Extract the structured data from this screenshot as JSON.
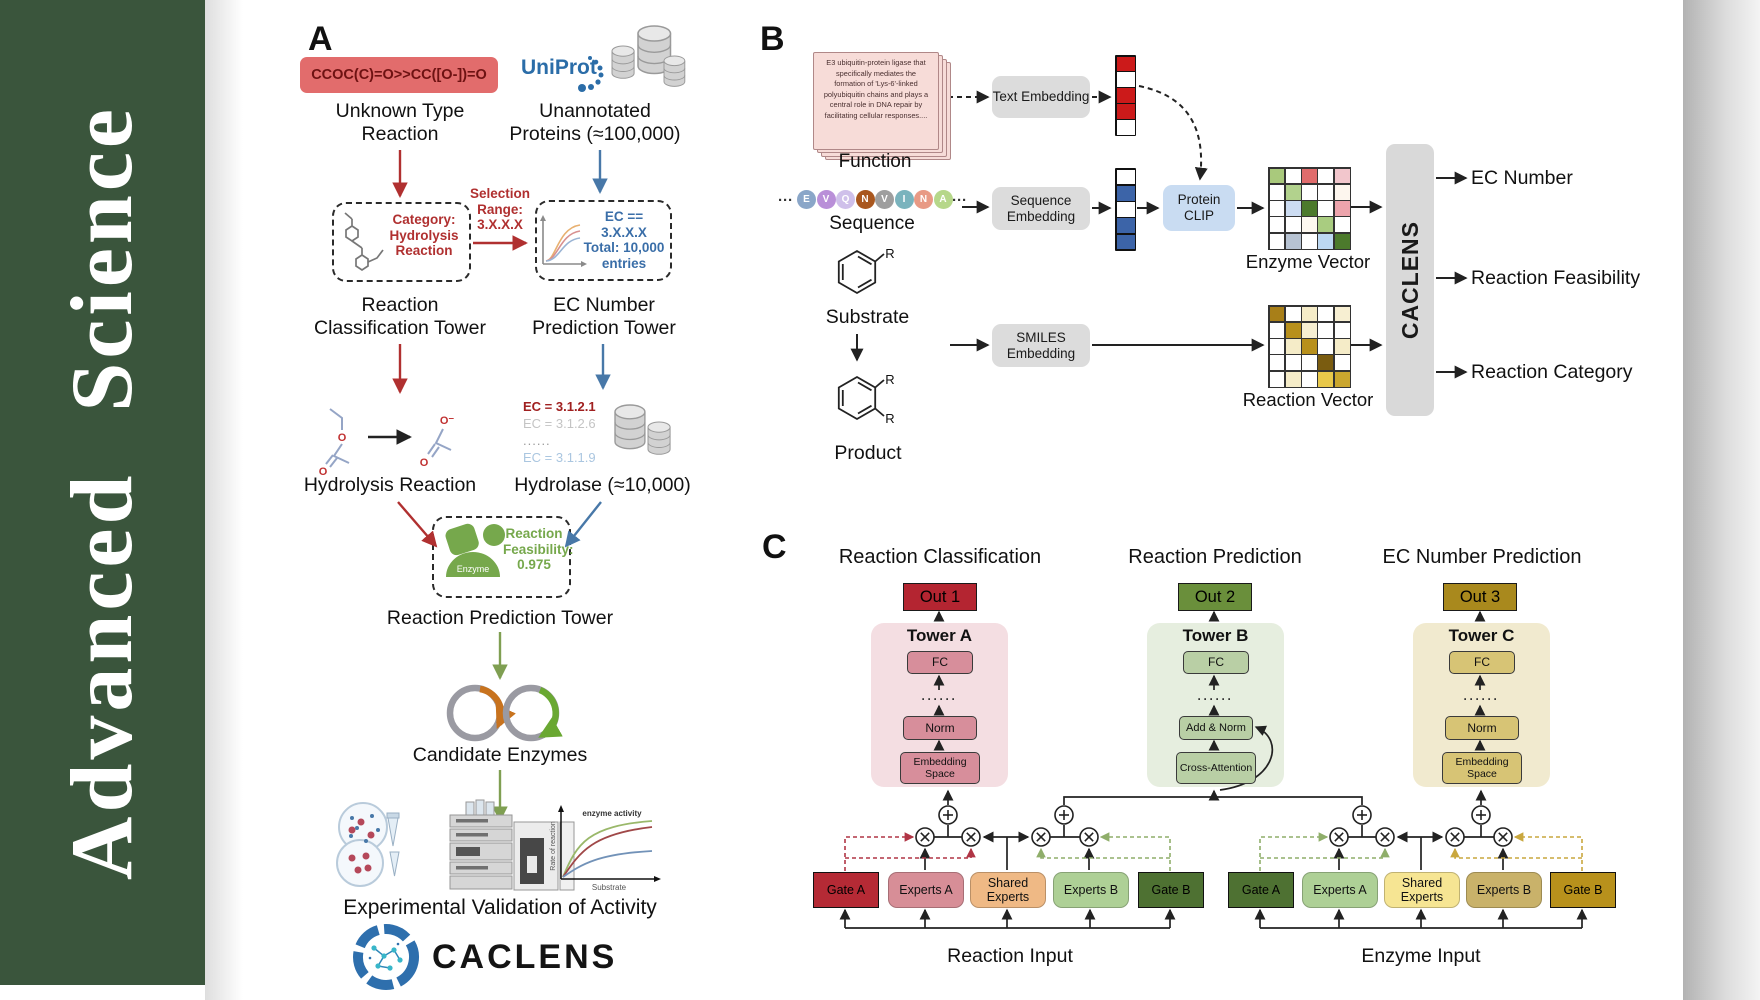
{
  "journal": {
    "name": "Advanced Science",
    "accent_green": "#3a553c"
  },
  "panelA": {
    "label": "A",
    "smiles": "CCOC(C)=O>>CC([O-])=O",
    "unknown_line1": "Unknown Type",
    "unknown_line2": "Reaction",
    "uniprot": "UniProt",
    "unannotated_line1": "Unannotated",
    "unannotated_line2": "Proteins (≈100,000)",
    "selection": [
      "Selection",
      "Range:",
      "3.X.X.X"
    ],
    "category": [
      "Category:",
      "Hydrolysis",
      "Reaction"
    ],
    "ec_box": [
      "EC == 3.X.X.X",
      "Total: 10,000",
      "entries"
    ],
    "tower1_line1": "Reaction",
    "tower1_line2": "Classification Tower",
    "tower2_line1": "EC Number",
    "tower2_line2": "Prediction Tower",
    "hydrolysis": "Hydrolysis Reaction",
    "hydrolase": "Hydrolase (≈10,000)",
    "ec_list": [
      "EC = 3.1.2.1",
      "EC = 3.1.2.6",
      "......",
      "EC = 3.1.1.9"
    ],
    "enzyme_label": "Enzyme",
    "feasibility": [
      "Reaction",
      "Feasibility:",
      "0.975"
    ],
    "tower3": "Reaction Prediction Tower",
    "candidate": "Candidate Enzymes",
    "plot": {
      "annotation": "enzyme activity",
      "ylabel": "Rate of reaction",
      "xlabel": "Substrate"
    },
    "validation": "Experimental Validation of Activity",
    "brand": "CACLENS"
  },
  "panelB": {
    "label": "B",
    "function_card": "E3 ubiquitin-protein ligase that specifically mediates the formation of 'Lys-6'-linked polyubiquitin chains and plays a central role in DNA repair by facilitating cellular responses....",
    "function_label": "Function",
    "ellipsis": "···",
    "sequence": [
      {
        "l": "E",
        "c": "#8aa6c8"
      },
      {
        "l": "V",
        "c": "#b98fd8"
      },
      {
        "l": "Q",
        "c": "#cfc0ea"
      },
      {
        "l": "N",
        "c": "#a9571e"
      },
      {
        "l": "V",
        "c": "#9e9e9e"
      },
      {
        "l": "I",
        "c": "#7ab3bd"
      },
      {
        "l": "N",
        "c": "#e89a85"
      },
      {
        "l": "A",
        "c": "#b6d78a"
      }
    ],
    "sequence_label": "Sequence",
    "substrate_label": "Substrate",
    "product_label": "Product",
    "r_label": "R",
    "text_embedding": "Text Embedding",
    "sequence_embedding": "Sequence Embedding",
    "smiles_embedding": "SMILES Embedding",
    "protein_clip": "Protein CLIP",
    "text_vector": [
      "#cc1a1a",
      "#ffffff",
      "#cc1a1a",
      "#cc1a1a",
      "#ffffff"
    ],
    "seq_vector": [
      "#ffffff",
      "#3c64a8",
      "#ffffff",
      "#3c64a8",
      "#3c64a8"
    ],
    "enzyme_grid": [
      [
        "#a9c97c",
        "#ffffff",
        "#e06c6c",
        "#ffffff",
        "#f2c6cc"
      ],
      [
        "#ffffff",
        "#b2d28d",
        "#ffffff",
        "#ffffff",
        "#fdf6ee"
      ],
      [
        "#ffffff",
        "#ccdcf2",
        "#4c7a2c",
        "#ffffff",
        "#eda4ac"
      ],
      [
        "#ffffff",
        "#ffffff",
        "#fdf8f0",
        "#a9cc80",
        "#ffffff"
      ],
      [
        "#ffffff",
        "#b7c3d3",
        "#ffffff",
        "#bcd8f2",
        "#4c7a2c"
      ]
    ],
    "reaction_grid": [
      [
        "#a87f18",
        "#ffffff",
        "#f5ecc8",
        "#ffffff",
        "#f7efd2"
      ],
      [
        "#ffffff",
        "#b8901c",
        "#f7efd2",
        "#ffffff",
        "#ffffff"
      ],
      [
        "#ffffff",
        "#f5ecc8",
        "#b8901c",
        "#ffffff",
        "#f5ecc8"
      ],
      [
        "#ffffff",
        "#ffffff",
        "#ffffff",
        "#7a5c10",
        "#ffffff"
      ],
      [
        "#ffffff",
        "#f5ecc8",
        "#ffffff",
        "#e8c84a",
        "#caa62e"
      ]
    ],
    "enzyme_vector_label": "Enzyme Vector",
    "reaction_vector_label": "Reaction Vector",
    "caclens": "CACLENS",
    "outputs": [
      "EC Number",
      "Reaction Feasibility",
      "Reaction Category"
    ]
  },
  "panelC": {
    "label": "C",
    "columns": [
      {
        "title": "Reaction Classification",
        "out": "Out 1",
        "tower": "Tower A",
        "fc": "FC",
        "dots": "······",
        "mid": "Norm",
        "bottom": "Embedding Space",
        "out_color": "#b42531"
      },
      {
        "title": "Reaction Prediction",
        "out": "Out 2",
        "tower": "Tower B",
        "fc": "FC",
        "dots": "······",
        "mid": "Add & Norm",
        "bottom": "Cross-Attention",
        "out_color": "#6a8f3b"
      },
      {
        "title": "EC Number Prediction",
        "out": "Out 3",
        "tower": "Tower C",
        "fc": "FC",
        "dots": "······",
        "mid": "Norm",
        "bottom": "Embedding Space",
        "out_color": "#a9891d"
      }
    ],
    "expert_groups": [
      {
        "input": "Reaction Input",
        "boxes": [
          "Gate A",
          "Experts A",
          "Shared Experts",
          "Experts B",
          "Gate B"
        ],
        "colors": [
          "#b52a35",
          "#d78e97",
          "#efb985",
          "#aed096",
          "#4e7132"
        ]
      },
      {
        "input": "Enzyme Input",
        "boxes": [
          "Gate A",
          "Experts A",
          "Shared Experts",
          "Experts B",
          "Gate B"
        ],
        "colors": [
          "#4e7132",
          "#aed096",
          "#f6e593",
          "#c9b26a",
          "#b8911c"
        ]
      }
    ]
  }
}
